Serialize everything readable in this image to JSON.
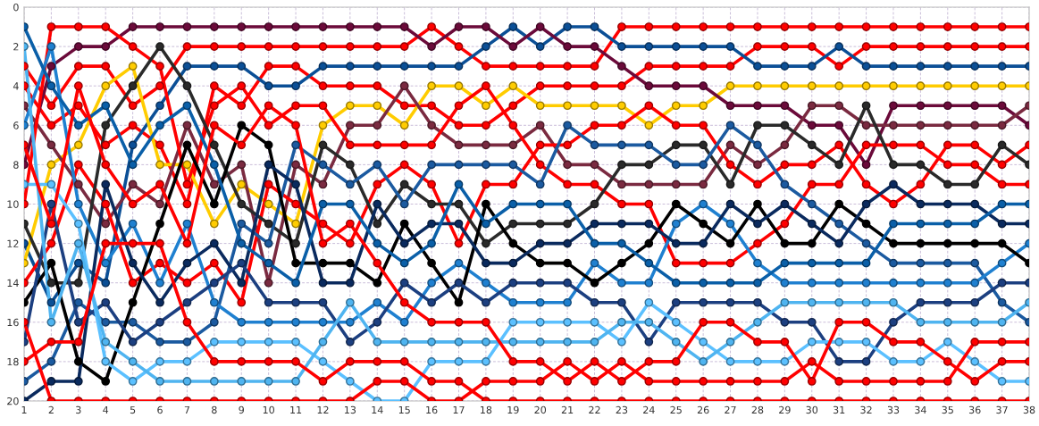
{
  "chart_data": {
    "type": "line",
    "x": [
      1,
      2,
      3,
      4,
      5,
      6,
      7,
      8,
      9,
      10,
      11,
      12,
      13,
      14,
      15,
      16,
      17,
      18,
      19,
      20,
      21,
      22,
      23,
      24,
      25,
      26,
      27,
      28,
      29,
      30,
      31,
      32,
      33,
      34,
      35,
      36,
      37,
      38
    ],
    "xlim": [
      1,
      38
    ],
    "xticks": [
      1,
      2,
      3,
      4,
      5,
      6,
      7,
      8,
      9,
      10,
      11,
      12,
      13,
      14,
      15,
      16,
      17,
      18,
      19,
      20,
      21,
      22,
      23,
      24,
      25,
      26,
      27,
      28,
      29,
      30,
      31,
      32,
      33,
      34,
      35,
      36,
      37,
      38
    ],
    "ylim": [
      20,
      0
    ],
    "yticks": [
      0,
      2,
      4,
      6,
      8,
      10,
      12,
      14,
      16,
      18,
      20
    ],
    "grid": true,
    "marker": "circle",
    "line_style": "solid",
    "series": [
      {
        "color": "#ff0000",
        "values": [
          3,
          5,
          3,
          3,
          5,
          4,
          2,
          2,
          2,
          2,
          2,
          2,
          2,
          2,
          2,
          1,
          2,
          3,
          3,
          3,
          3,
          3,
          1,
          1,
          1,
          1,
          1,
          1,
          1,
          1,
          1,
          1,
          1,
          1,
          1,
          1,
          1,
          1
        ]
      },
      {
        "color": "#ff0000",
        "values": [
          4,
          6,
          5,
          7,
          6,
          7,
          10,
          4,
          5,
          3,
          3,
          4,
          4,
          4,
          5,
          5,
          6,
          6,
          5,
          4,
          4,
          4,
          4,
          3,
          3,
          3,
          3,
          2,
          2,
          2,
          3,
          2,
          2,
          2,
          2,
          2,
          2,
          2
        ]
      },
      {
        "color": "#0b4f96",
        "values": [
          12,
          15,
          13,
          14,
          7,
          5,
          3,
          3,
          3,
          4,
          4,
          3,
          3,
          3,
          3,
          3,
          3,
          2,
          1,
          2,
          1,
          1,
          2,
          2,
          2,
          2,
          2,
          3,
          3,
          3,
          2,
          3,
          3,
          3,
          3,
          3,
          3,
          3
        ]
      },
      {
        "color": "#ffcc00",
        "values": [
          13,
          8,
          7,
          4,
          3,
          8,
          8,
          11,
          9,
          10,
          11,
          6,
          5,
          5,
          6,
          4,
          4,
          5,
          4,
          5,
          5,
          5,
          5,
          6,
          5,
          5,
          4,
          4,
          4,
          4,
          4,
          4,
          4,
          4,
          4,
          4,
          4,
          4
        ]
      },
      {
        "color": "#6b0a3a",
        "values": [
          8,
          3,
          2,
          2,
          1,
          1,
          1,
          1,
          1,
          1,
          1,
          1,
          1,
          1,
          1,
          2,
          1,
          1,
          2,
          1,
          2,
          2,
          3,
          4,
          4,
          4,
          5,
          5,
          5,
          6,
          6,
          8,
          5,
          5,
          5,
          5,
          5,
          6
        ]
      },
      {
        "color": "#7a2a40",
        "values": [
          5,
          7,
          9,
          11,
          9,
          10,
          6,
          9,
          8,
          14,
          8,
          9,
          6,
          6,
          4,
          6,
          7,
          7,
          7,
          6,
          8,
          8,
          9,
          9,
          9,
          9,
          7,
          8,
          7,
          5,
          5,
          6,
          6,
          6,
          6,
          6,
          6,
          5
        ]
      },
      {
        "color": "#ff0000",
        "values": [
          14,
          12,
          8,
          10,
          14,
          13,
          14,
          13,
          15,
          9,
          10,
          11,
          12,
          9,
          8,
          9,
          12,
          9,
          9,
          7,
          7,
          6,
          6,
          5,
          6,
          6,
          8,
          9,
          8,
          8,
          7,
          9,
          10,
          9,
          7,
          7,
          8,
          7
        ]
      },
      {
        "color": "#ff0000",
        "values": [
          10,
          1,
          1,
          1,
          2,
          3,
          9,
          5,
          4,
          6,
          5,
          5,
          7,
          7,
          7,
          7,
          5,
          4,
          6,
          8,
          9,
          9,
          10,
          10,
          13,
          13,
          13,
          12,
          11,
          9,
          9,
          7,
          7,
          7,
          8,
          8,
          9,
          9
        ]
      },
      {
        "color": "#2a2a2a",
        "values": [
          11,
          14,
          14,
          6,
          4,
          2,
          4,
          7,
          10,
          11,
          12,
          7,
          8,
          11,
          9,
          10,
          10,
          12,
          11,
          11,
          11,
          10,
          8,
          8,
          7,
          7,
          9,
          6,
          6,
          7,
          8,
          5,
          8,
          8,
          9,
          9,
          7,
          8
        ]
      },
      {
        "color": "#1b5aa0",
        "values": [
          19,
          18,
          15,
          16,
          16,
          17,
          17,
          16,
          11,
          12,
          7,
          8,
          9,
          8,
          10,
          8,
          8,
          8,
          8,
          9,
          6,
          7,
          7,
          7,
          8,
          8,
          6,
          7,
          9,
          10,
          11,
          12,
          13,
          13,
          13,
          13,
          15,
          16
        ]
      },
      {
        "color": "#1f80d0",
        "values": [
          6,
          2,
          10,
          13,
          11,
          14,
          11,
          15,
          16,
          16,
          16,
          16,
          16,
          15,
          16,
          14,
          13,
          14,
          15,
          15,
          15,
          13,
          14,
          14,
          11,
          10,
          11,
          13,
          14,
          14,
          14,
          14,
          14,
          14,
          14,
          14,
          13,
          12
        ]
      },
      {
        "color": "#000000",
        "values": [
          15,
          13,
          18,
          19,
          15,
          11,
          7,
          10,
          6,
          7,
          13,
          13,
          13,
          14,
          11,
          13,
          15,
          10,
          12,
          13,
          13,
          14,
          13,
          12,
          10,
          11,
          12,
          10,
          12,
          12,
          10,
          11,
          12,
          12,
          12,
          12,
          12,
          13
        ]
      },
      {
        "color": "#0a2a5e",
        "values": [
          20,
          19,
          19,
          9,
          13,
          15,
          13,
          12,
          14,
          8,
          9,
          14,
          14,
          10,
          12,
          11,
          11,
          13,
          13,
          12,
          12,
          11,
          11,
          11,
          12,
          12,
          10,
          11,
          10,
          11,
          12,
          10,
          9,
          10,
          10,
          10,
          11,
          11
        ]
      },
      {
        "color": "#0a5fa8",
        "values": [
          1,
          4,
          6,
          5,
          8,
          6,
          5,
          8,
          12,
          13,
          14,
          10,
          10,
          12,
          13,
          12,
          9,
          11,
          10,
          10,
          10,
          12,
          12,
          13,
          14,
          14,
          14,
          14,
          13,
          13,
          13,
          13,
          11,
          11,
          11,
          11,
          10,
          10
        ]
      },
      {
        "color": "#1c3f80",
        "values": [
          17,
          10,
          16,
          15,
          17,
          16,
          15,
          14,
          13,
          15,
          15,
          15,
          17,
          16,
          14,
          15,
          14,
          15,
          14,
          14,
          14,
          15,
          15,
          17,
          15,
          15,
          15,
          15,
          16,
          16,
          18,
          18,
          16,
          15,
          15,
          15,
          14,
          14
        ]
      },
      {
        "color": "#5bc0ff",
        "values": [
          9,
          9,
          11,
          18,
          19,
          18,
          18,
          17,
          17,
          17,
          17,
          18,
          19,
          20,
          20,
          18,
          18,
          18,
          16,
          16,
          16,
          16,
          17,
          15,
          16,
          17,
          18,
          18,
          18,
          17,
          17,
          17,
          18,
          18,
          17,
          18,
          19,
          19
        ]
      },
      {
        "color": "#4fb4f0",
        "values": [
          2,
          16,
          12,
          17,
          18,
          19,
          19,
          19,
          19,
          19,
          19,
          17,
          15,
          17,
          17,
          17,
          17,
          17,
          17,
          17,
          17,
          17,
          16,
          16,
          17,
          18,
          17,
          16,
          15,
          15,
          15,
          15,
          15,
          16,
          16,
          16,
          16,
          15
        ]
      },
      {
        "color": "#ff0000",
        "values": [
          7,
          11,
          4,
          8,
          10,
          9,
          12,
          6,
          7,
          5,
          6,
          12,
          11,
          13,
          15,
          16,
          16,
          16,
          18,
          18,
          19,
          18,
          19,
          18,
          18,
          16,
          16,
          17,
          17,
          19,
          16,
          16,
          17,
          17,
          18,
          19,
          18,
          18
        ]
      },
      {
        "color": "#ff0000",
        "values": [
          16,
          20,
          20,
          20,
          20,
          20,
          20,
          20,
          20,
          20,
          20,
          20,
          20,
          19,
          19,
          20,
          20,
          19,
          19,
          19,
          18,
          19,
          18,
          19,
          19,
          19,
          19,
          19,
          19,
          18,
          19,
          19,
          19,
          19,
          19,
          17,
          17,
          17
        ]
      },
      {
        "color": "#ff0000",
        "values": [
          18,
          17,
          17,
          12,
          12,
          12,
          16,
          18,
          18,
          18,
          18,
          19,
          18,
          18,
          18,
          19,
          19,
          20,
          20,
          20,
          20,
          20,
          20,
          20,
          20,
          20,
          20,
          20,
          20,
          20,
          20,
          20,
          20,
          20,
          20,
          20,
          20,
          20
        ]
      }
    ]
  }
}
